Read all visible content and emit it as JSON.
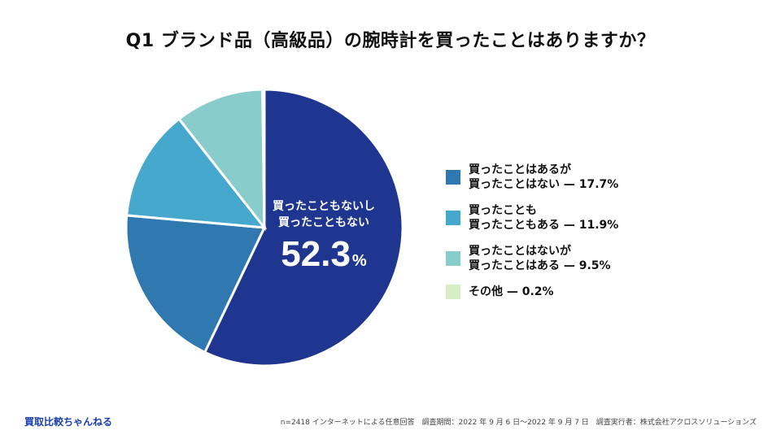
{
  "title": "Q1 ブランド品（高級品）の腕時計を買ったことはありますか？",
  "chart_data": {
    "type": "pie",
    "title": "Q1 ブランド品（高級品）の腕時計を買ったことはありますか？",
    "unit": "%",
    "slices": [
      {
        "label": "買ったこともないし買ったこともない",
        "value": 52.3,
        "color": "#1f3690"
      },
      {
        "label": "買ったことはあるが買ったことはない",
        "value": 17.7,
        "color": "#2f78b0"
      },
      {
        "label": "買ったことも買ったこともある",
        "value": 11.9,
        "color": "#46a8cc"
      },
      {
        "label": "買ったことはないが買ったことはある",
        "value": 9.5,
        "color": "#88cdcc"
      },
      {
        "label": "その他",
        "value": 0.2,
        "color": "#d6edc8"
      }
    ]
  },
  "center_label": {
    "line1": "買ったこともないし",
    "line2": "買ったこともない",
    "value": "52.3",
    "unit": "%"
  },
  "legend": [
    {
      "line1": "買ったことはあるが",
      "line2": "買ったことはない",
      "value": "17.7%",
      "color": "#2f78b0"
    },
    {
      "line1": "買ったことも",
      "line2": "買ったこともある",
      "value": "11.9%",
      "color": "#46a8cc"
    },
    {
      "line1": "買ったことはないが",
      "line2": "買ったことはある",
      "value": "9.5%",
      "color": "#88cdcc"
    },
    {
      "line1": "",
      "line2": "その他",
      "value": "0.2%",
      "color": "#d6edc8"
    }
  ],
  "legend_separator": "—",
  "footer": {
    "brand": "買取比較ちゃんねる",
    "note": "n=2418 インターネットによる任意回答　調査期間：2022 年 9 月 6 日〜2022 年 9 月 7 日　調査実行者：株式会社アクロスソリューションズ"
  }
}
